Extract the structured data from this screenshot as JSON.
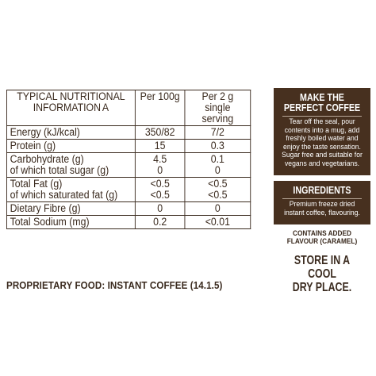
{
  "table": {
    "header": {
      "name_line1": "TYPICAL NUTRITIONAL",
      "name_line2": "INFORMATION",
      "name_suffix": "A",
      "per100": "Per 100g",
      "serving_line1": "Per 2 g single",
      "serving_line2": "serving"
    },
    "rows": [
      {
        "name": "Energy (kJ/kcal)",
        "per100": "350/82",
        "serving": "7/2"
      },
      {
        "name": "Protein (g)",
        "per100": "15",
        "serving": "0.3"
      },
      {
        "name": "Carbohydrate (g)",
        "name2": "of which total sugar (g)",
        "per100": "4.5",
        "per100_2": "0",
        "serving": "0.1",
        "serving_2": "0"
      },
      {
        "name": "Total Fat (g)",
        "name2": "of which saturated fat (g)",
        "per100": "<0.5",
        "per100_2": "<0.5",
        "serving": "<0.5",
        "serving_2": "<0.5"
      },
      {
        "name": "Dietary Fibre (g)",
        "per100": "0",
        "serving": "0"
      },
      {
        "name": "Total Sodium (mg)",
        "per100": "0.2",
        "serving": "<0.01"
      }
    ]
  },
  "proprietary": "PROPRIETARY FOOD: INSTANT COFFEE (14.1.5)",
  "make_coffee": {
    "title_line1": "MAKE THE",
    "title_line2": "PERFECT COFFEE",
    "text1": "Tear off the seal, pour contents into a mug, add freshly boiled water and enjoy the taste sensation.",
    "text2": "Sugar free and suitable for vegans and vegetarians."
  },
  "ingredients": {
    "title": "INGREDIENTS",
    "text": "Premium freeze dried instant coffee, flavouring."
  },
  "contains": {
    "line1": "CONTAINS ADDED",
    "line2": "FLAVOUR (CARAMEL)"
  },
  "store": {
    "line1": "STORE IN A COOL",
    "line2": "DRY PLACE."
  },
  "colors": {
    "text": "#3a2a1e",
    "panel": "#47301f",
    "background": "#ffffff"
  }
}
